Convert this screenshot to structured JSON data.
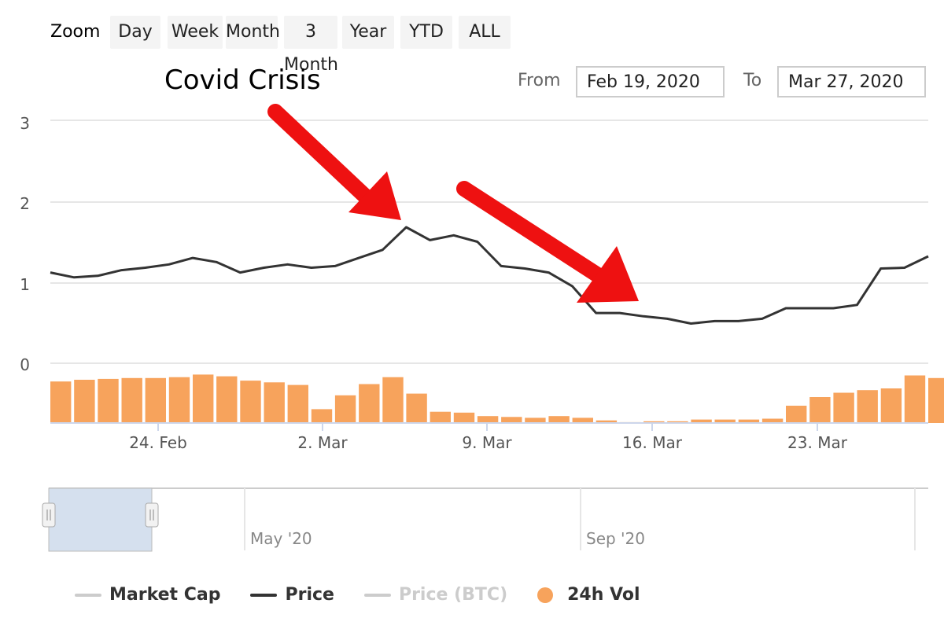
{
  "toolbar": {
    "zoom_label": "Zoom",
    "buttons": [
      "Day",
      "Week",
      "Month",
      "3 Month",
      "Year",
      "YTD",
      "ALL"
    ],
    "from_label": "From",
    "from_value": "Feb 19, 2020",
    "to_label": "To",
    "to_value": "Mar 27, 2020"
  },
  "annotation": {
    "title": "Covid Crisis",
    "arrow_color": "#ee1111"
  },
  "navigator": {
    "labels": [
      "May '20",
      "Sep '20"
    ]
  },
  "legend": {
    "items": [
      {
        "label": "Market Cap",
        "color": "#cccccc"
      },
      {
        "label": "Price",
        "color": "#333333"
      },
      {
        "label": "Price (BTC)",
        "color": "#cccccc"
      },
      {
        "label": "24h Vol",
        "color": "#f7a35c"
      }
    ]
  },
  "chart_data": {
    "type": "line",
    "yticks": [
      "0",
      "1",
      "2",
      "3"
    ],
    "ylim": [
      0,
      3
    ],
    "xticks": [
      "24. Feb",
      "2. Mar",
      "9. Mar",
      "16. Mar",
      "23. Mar"
    ],
    "x_range": [
      "2020-02-19",
      "2020-03-27"
    ],
    "grid": true,
    "series": [
      {
        "name": "Price",
        "color": "#333333",
        "x": [
          "2020-02-19",
          "2020-02-20",
          "2020-02-21",
          "2020-02-22",
          "2020-02-23",
          "2020-02-24",
          "2020-02-25",
          "2020-02-26",
          "2020-02-27",
          "2020-02-28",
          "2020-02-29",
          "2020-03-01",
          "2020-03-02",
          "2020-03-03",
          "2020-03-04",
          "2020-03-05",
          "2020-03-06",
          "2020-03-07",
          "2020-03-08",
          "2020-03-09",
          "2020-03-10",
          "2020-03-11",
          "2020-03-12",
          "2020-03-13",
          "2020-03-14",
          "2020-03-15",
          "2020-03-16",
          "2020-03-17",
          "2020-03-18",
          "2020-03-19",
          "2020-03-20",
          "2020-03-21",
          "2020-03-22",
          "2020-03-23",
          "2020-03-24",
          "2020-03-25",
          "2020-03-26",
          "2020-03-27"
        ],
        "values": [
          1.12,
          1.06,
          1.08,
          1.15,
          1.18,
          1.22,
          1.3,
          1.25,
          1.12,
          1.18,
          1.22,
          1.18,
          1.2,
          1.3,
          1.4,
          1.68,
          1.52,
          1.58,
          1.5,
          1.2,
          1.17,
          1.12,
          0.95,
          0.62,
          0.62,
          0.58,
          0.55,
          0.49,
          0.52,
          0.52,
          0.55,
          0.68,
          0.68,
          0.68,
          0.72,
          1.17,
          1.18,
          1.32
        ]
      },
      {
        "name": "24h Vol",
        "color": "#f7a35c",
        "x": [
          "2020-02-19",
          "2020-02-20",
          "2020-02-21",
          "2020-02-22",
          "2020-02-23",
          "2020-02-24",
          "2020-02-25",
          "2020-02-26",
          "2020-02-27",
          "2020-02-28",
          "2020-02-29",
          "2020-03-01",
          "2020-03-02",
          "2020-03-03",
          "2020-03-04",
          "2020-03-05",
          "2020-03-06",
          "2020-03-07",
          "2020-03-08",
          "2020-03-09",
          "2020-03-10",
          "2020-03-11",
          "2020-03-12",
          "2020-03-13",
          "2020-03-14",
          "2020-03-15",
          "2020-03-16",
          "2020-03-17",
          "2020-03-18",
          "2020-03-19",
          "2020-03-20",
          "2020-03-21",
          "2020-03-22",
          "2020-03-23",
          "2020-03-24",
          "2020-03-25",
          "2020-03-26",
          "2020-03-27"
        ],
        "values": [
          0.48,
          0.5,
          0.51,
          0.52,
          0.52,
          0.53,
          0.56,
          0.54,
          0.49,
          0.47,
          0.44,
          0.16,
          0.32,
          0.45,
          0.53,
          0.34,
          0.13,
          0.12,
          0.08,
          0.07,
          0.06,
          0.08,
          0.06,
          0.03,
          0.01,
          0.02,
          0.02,
          0.04,
          0.04,
          0.04,
          0.05,
          0.2,
          0.3,
          0.35,
          0.38,
          0.4,
          0.55,
          0.52
        ]
      }
    ]
  }
}
